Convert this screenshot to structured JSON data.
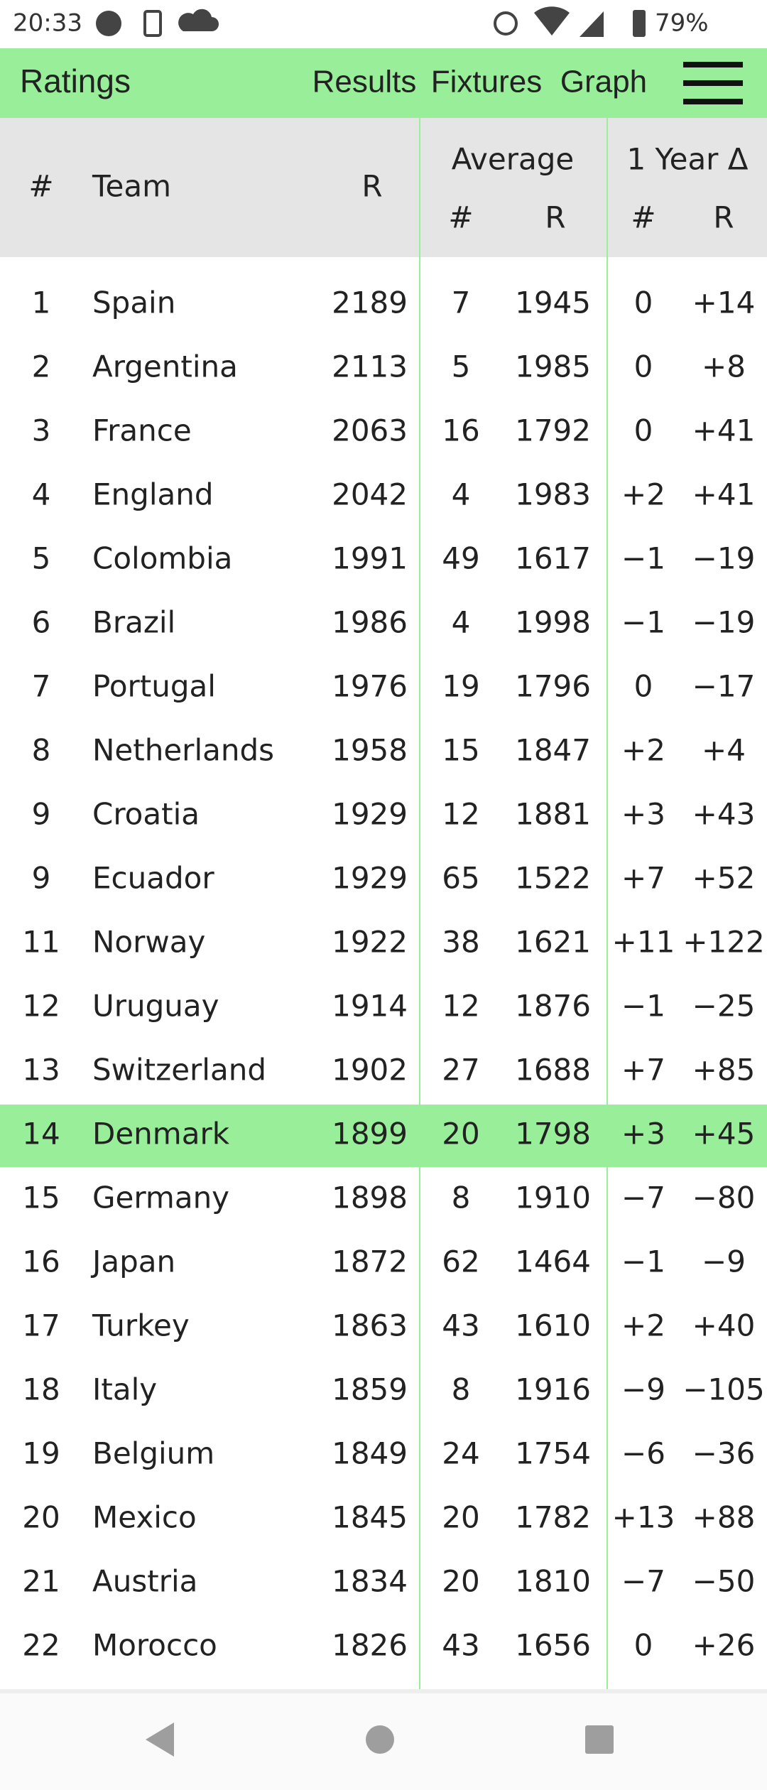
{
  "status_bar": {
    "time": "20:33",
    "battery": "79%"
  },
  "nav": {
    "title": "Ratings",
    "links": [
      "Results",
      "Fixtures",
      "Graph"
    ]
  },
  "table": {
    "headers": {
      "rank": "#",
      "team": "Team",
      "rating": "R",
      "average": "Average",
      "average_rank": "#",
      "average_rating": "R",
      "year_change": "1 Year Δ",
      "year_rank": "#",
      "year_rating": "R"
    },
    "rows": [
      [
        "1",
        "Spain",
        "2189",
        "7",
        "1945",
        "0",
        "+14"
      ],
      [
        "2",
        "Argentina",
        "2113",
        "5",
        "1985",
        "0",
        "+8"
      ],
      [
        "3",
        "France",
        "2063",
        "16",
        "1792",
        "0",
        "+41"
      ],
      [
        "4",
        "England",
        "2042",
        "4",
        "1983",
        "+2",
        "+41"
      ],
      [
        "5",
        "Colombia",
        "1991",
        "49",
        "1617",
        "−1",
        "−19"
      ],
      [
        "6",
        "Brazil",
        "1986",
        "4",
        "1998",
        "−1",
        "−19"
      ],
      [
        "7",
        "Portugal",
        "1976",
        "19",
        "1796",
        "0",
        "−17"
      ],
      [
        "8",
        "Netherlands",
        "1958",
        "15",
        "1847",
        "+2",
        "+4"
      ],
      [
        "9",
        "Croatia",
        "1929",
        "12",
        "1881",
        "+3",
        "+43"
      ],
      [
        "9",
        "Ecuador",
        "1929",
        "65",
        "1522",
        "+7",
        "+52"
      ],
      [
        "11",
        "Norway",
        "1922",
        "38",
        "1621",
        "+11",
        "+122"
      ],
      [
        "12",
        "Uruguay",
        "1914",
        "12",
        "1876",
        "−1",
        "−25"
      ],
      [
        "13",
        "Switzerland",
        "1902",
        "27",
        "1688",
        "+7",
        "+85"
      ],
      [
        "14",
        "Denmark",
        "1899",
        "20",
        "1798",
        "+3",
        "+45"
      ],
      [
        "15",
        "Germany",
        "1898",
        "8",
        "1910",
        "−7",
        "−80"
      ],
      [
        "16",
        "Japan",
        "1872",
        "62",
        "1464",
        "−1",
        "−9"
      ],
      [
        "17",
        "Turkey",
        "1863",
        "43",
        "1610",
        "+2",
        "+40"
      ],
      [
        "18",
        "Italy",
        "1859",
        "8",
        "1916",
        "−9",
        "−105"
      ],
      [
        "19",
        "Belgium",
        "1849",
        "24",
        "1754",
        "−6",
        "−36"
      ],
      [
        "20",
        "Mexico",
        "1845",
        "20",
        "1782",
        "+13",
        "+88"
      ],
      [
        "21",
        "Austria",
        "1834",
        "20",
        "1810",
        "−7",
        "−50"
      ],
      [
        "22",
        "Morocco",
        "1826",
        "43",
        "1656",
        "0",
        "+26"
      ]
    ]
  }
}
